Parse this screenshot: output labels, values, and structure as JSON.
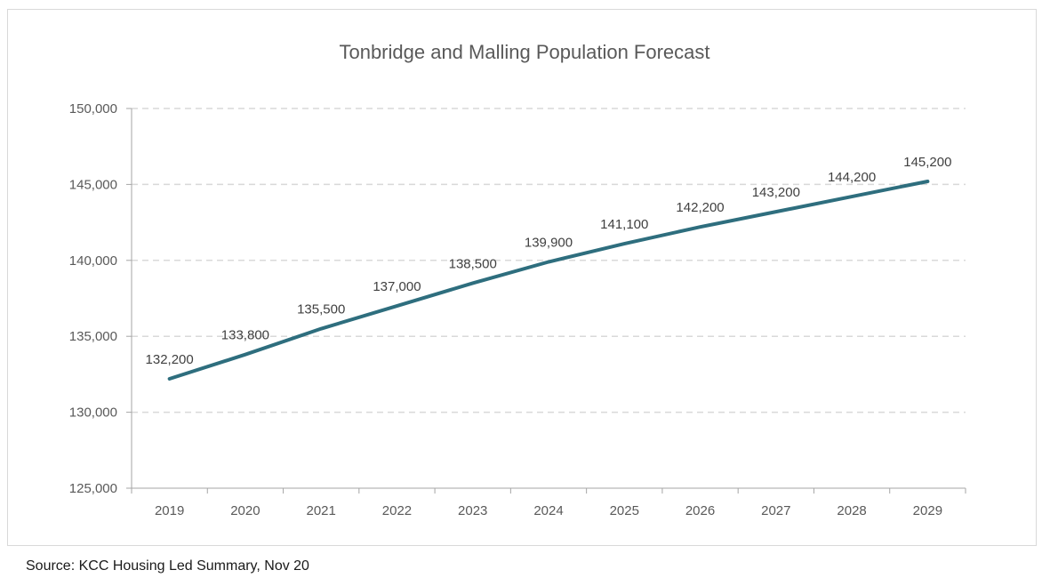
{
  "chart_data": {
    "type": "line",
    "title": "Tonbridge and Malling Population Forecast",
    "xlabel": "",
    "ylabel": "",
    "categories": [
      "2019",
      "2020",
      "2021",
      "2022",
      "2023",
      "2024",
      "2025",
      "2026",
      "2027",
      "2028",
      "2029"
    ],
    "series": [
      {
        "values": [
          132200,
          133800,
          135500,
          137000,
          138500,
          139900,
          141100,
          142200,
          143200,
          144200,
          145200
        ],
        "labels": [
          "132,200",
          "133,800",
          "135,500",
          "137,000",
          "138,500",
          "139,900",
          "141,100",
          "142,200",
          "143,200",
          "144,200",
          "145,200"
        ],
        "color": "#2e6e7e"
      }
    ],
    "ylim": [
      125000,
      150000
    ],
    "yticks": [
      125000,
      130000,
      135000,
      140000,
      145000,
      150000
    ],
    "ytick_labels": [
      "125,000",
      "130,000",
      "135,000",
      "140,000",
      "145,000",
      "150,000"
    ],
    "grid": "horizontal dashed",
    "legend": "none"
  },
  "source": "Source: KCC Housing Led Summary, Nov 20",
  "colors": {
    "line": "#2e6e7e",
    "grid": "#d9d9d9",
    "axis": "#a6a6a6",
    "text": "#595959"
  }
}
